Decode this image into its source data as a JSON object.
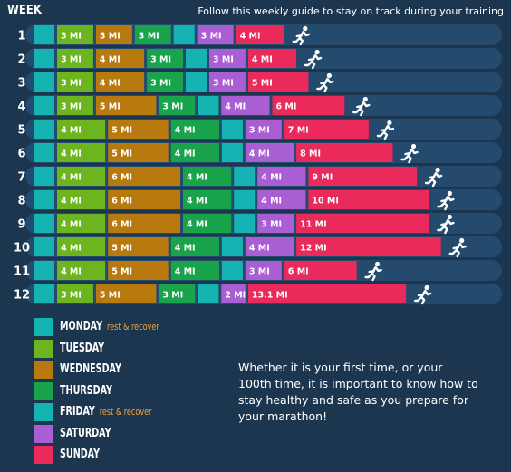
{
  "header": {
    "week_label": "WEEK",
    "subtitle": "Follow this weekly guide to stay on track during your training"
  },
  "legend": [
    {
      "day": "MONDAY",
      "note": "rest & recover",
      "color": "#16b3b3"
    },
    {
      "day": "TUESDAY",
      "note": "",
      "color": "#6db51e"
    },
    {
      "day": "WEDNESDAY",
      "note": "",
      "color": "#b8790f"
    },
    {
      "day": "THURSDAY",
      "note": "",
      "color": "#19a34a"
    },
    {
      "day": "FRIDAY",
      "note": "rest & recover",
      "color": "#16b3b3"
    },
    {
      "day": "SATURDAY",
      "note": "",
      "color": "#a95fd3"
    },
    {
      "day": "SUNDAY",
      "note": "",
      "color": "#ea2a5b"
    }
  ],
  "body_text": "Whether it is your first time, or your 100th time, it is important to know how to stay healthy and safe as you prepare for your marathon!",
  "chart_data": {
    "type": "bar",
    "stacked": true,
    "orientation": "horizontal",
    "unit": "MI",
    "categories": [
      "1",
      "2",
      "3",
      "4",
      "5",
      "6",
      "7",
      "8",
      "9",
      "10",
      "11",
      "12"
    ],
    "series": [
      {
        "name": "MONDAY",
        "values": [
          0,
          0,
          0,
          0,
          0,
          0,
          0,
          0,
          0,
          0,
          0,
          0
        ],
        "labels": [
          "",
          "",
          "",
          "",
          "",
          "",
          "",
          "",
          "",
          "",
          "",
          ""
        ]
      },
      {
        "name": "TUESDAY",
        "values": [
          3,
          3,
          3,
          3,
          4,
          4,
          4,
          4,
          4,
          4,
          4,
          3
        ],
        "labels": [
          "3 MI",
          "3 MI",
          "3 MI",
          "3 MI",
          "4 MI",
          "4 MI",
          "4 MI",
          "4 MI",
          "4 MI",
          "4 MI",
          "4 MI",
          "3 MI"
        ]
      },
      {
        "name": "WEDNESDAY",
        "values": [
          3,
          4,
          4,
          5,
          5,
          5,
          6,
          6,
          6,
          5,
          5,
          5
        ],
        "labels": [
          "3 MI",
          "4 MI",
          "4 MI",
          "5 MI",
          "5 MI",
          "5 MI",
          "6 MI",
          "6 MI",
          "6 MI",
          "5 MI",
          "5 MI",
          "5 MI"
        ]
      },
      {
        "name": "THURSDAY",
        "values": [
          3,
          3,
          3,
          3,
          4,
          4,
          4,
          4,
          4,
          4,
          4,
          3
        ],
        "labels": [
          "3 MI",
          "3 MI",
          "3 MI",
          "3 MI",
          "4 MI",
          "4 MI",
          "4 MI",
          "4 MI",
          "4 MI",
          "4 MI",
          "4 MI",
          "3 MI"
        ]
      },
      {
        "name": "FRIDAY",
        "values": [
          0,
          0,
          0,
          0,
          0,
          0,
          0,
          0,
          0,
          0,
          0,
          0
        ],
        "labels": [
          "",
          "",
          "",
          "",
          "",
          "",
          "",
          "",
          "",
          "",
          "",
          ""
        ]
      },
      {
        "name": "SATURDAY",
        "values": [
          3,
          3,
          3,
          4,
          3,
          4,
          4,
          4,
          3,
          4,
          3,
          2
        ],
        "labels": [
          "3 MI",
          "3 MI",
          "3 MI",
          "4 MI",
          "3 MI",
          "4 MI",
          "4 MI",
          "4 MI",
          "3 MI",
          "4 MI",
          "3 MI",
          "2 MI"
        ]
      },
      {
        "name": "SUNDAY",
        "values": [
          4,
          4,
          5,
          6,
          7,
          8,
          9,
          10,
          11,
          12,
          6,
          13.1
        ],
        "labels": [
          "4 MI",
          "4 MI",
          "5 MI",
          "6 MI",
          "7 MI",
          "8 MI",
          "9 MI",
          "10 MI",
          "11 MI",
          "12 MI",
          "6 MI",
          "13.1 MI"
        ]
      }
    ]
  }
}
